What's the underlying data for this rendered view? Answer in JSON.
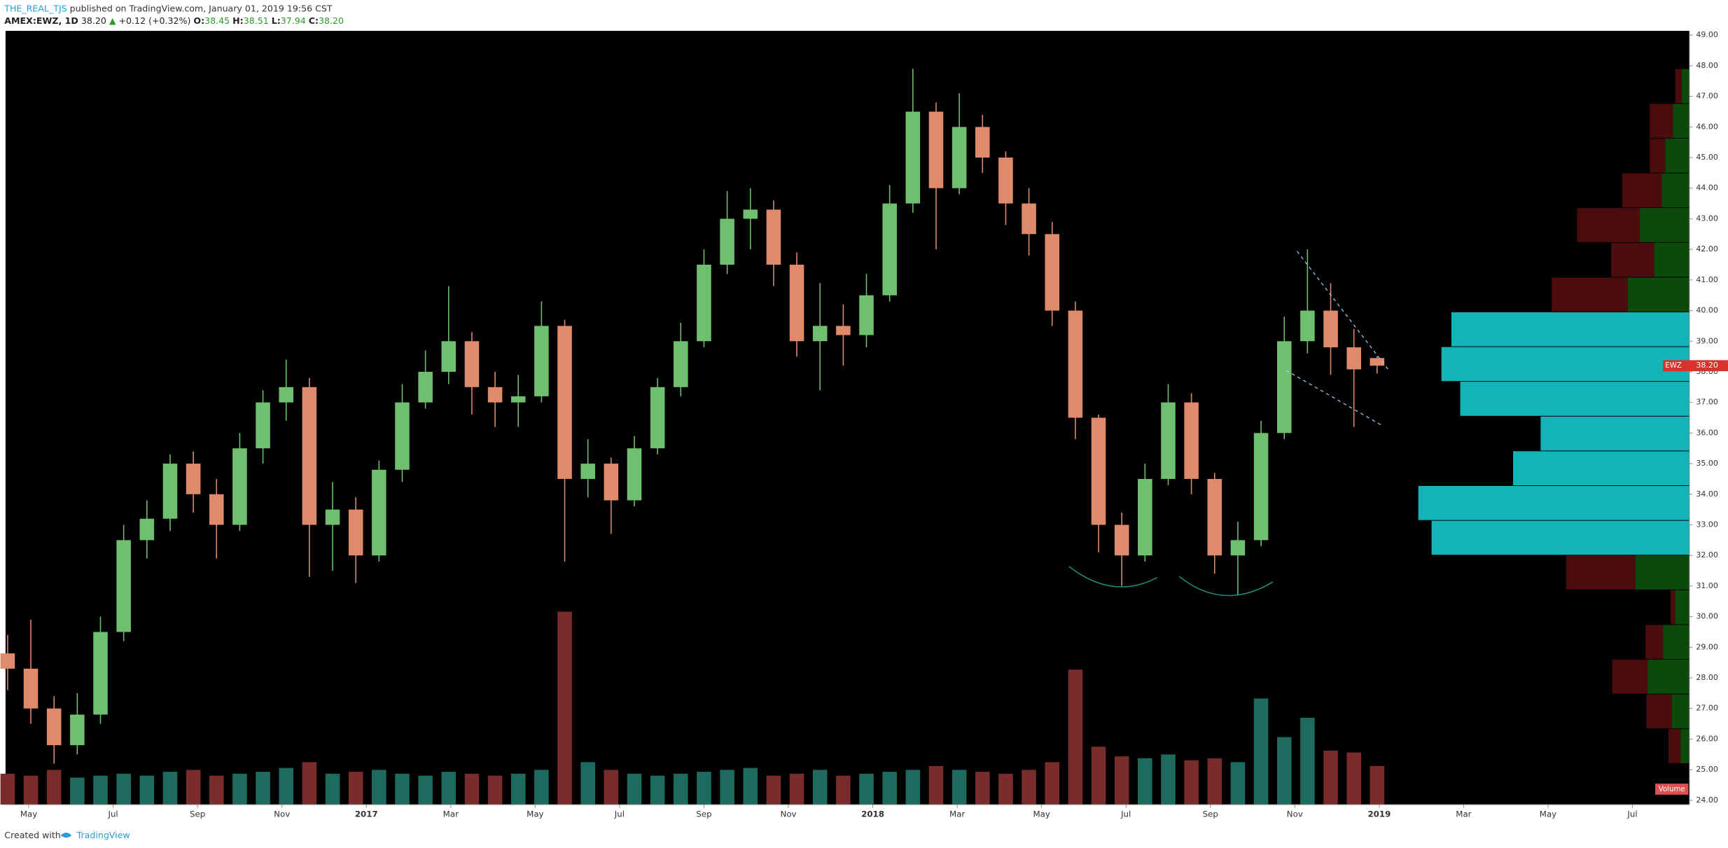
{
  "chart_data": {
    "type": "candlestick",
    "header": {
      "author": "THE_REAL_TJS",
      "published": "published on TradingView.com, January 01, 2019 19:56 CST",
      "symbol": "AMEX:EWZ, 1D",
      "last": "38.20",
      "arrow": "▲",
      "change": "+0.12 (+0.32%)",
      "o_label": "O:",
      "o": "38.45",
      "h_label": "H:",
      "h": "38.51",
      "l_label": "L:",
      "l": "37.94",
      "c_label": "C:",
      "c": "38.20"
    },
    "footer": {
      "created": "Created with",
      "brand": "TradingView"
    },
    "volume_label": "Volume",
    "last_price": {
      "symbol": "EWZ",
      "value": 38.2,
      "label": "38.20"
    },
    "colors": {
      "up": "#6fbf6f",
      "down": "#e08a6c",
      "vol_up": "#1d6b5e",
      "vol_down": "#7a2b2b",
      "profile_up": "#0b4a0b",
      "profile_down": "#4a0c0c",
      "value_area": "#12b4b8"
    },
    "x": [
      3.5,
      4.05,
      4.6,
      5.15,
      5.7,
      6.25,
      6.8,
      7.35,
      7.9,
      8.45,
      9.0,
      9.55,
      10.1,
      10.65,
      11.2,
      11.75,
      12.3,
      12.85,
      13.4,
      13.95,
      14.5,
      15.05,
      15.6,
      16.15,
      16.7,
      17.25,
      17.8,
      18.35,
      18.9,
      19.45,
      20.0,
      20.55,
      21.1,
      21.65,
      22.2,
      22.75,
      23.3,
      23.85,
      24.4,
      24.95,
      25.5,
      26.05,
      26.6,
      27.15,
      27.7,
      28.25,
      28.8,
      29.35,
      29.9,
      30.45,
      31.0,
      31.55,
      32.1,
      32.65,
      33.2,
      33.75,
      34.3,
      34.85,
      35.4,
      35.95
    ],
    "open": [
      28.8,
      28.3,
      27.0,
      25.8,
      26.8,
      29.5,
      32.5,
      33.2,
      35.0,
      34.0,
      33.0,
      35.5,
      37.0,
      37.5,
      33.0,
      33.5,
      32.0,
      34.8,
      37.0,
      38.0,
      39.0,
      37.5,
      37.0,
      37.2,
      39.5,
      34.5,
      35.0,
      33.8,
      35.5,
      37.5,
      39.0,
      41.5,
      43.0,
      43.3,
      41.5,
      39.0,
      39.5,
      39.2,
      40.5,
      43.5,
      46.5,
      44.0,
      46.0,
      45.0,
      43.5,
      42.5,
      40.0,
      36.5,
      33.0,
      32.0,
      34.5,
      37.0,
      34.5,
      32.0,
      32.5,
      36.0,
      39.0,
      40.0,
      38.8,
      38.45
    ],
    "high": [
      29.4,
      29.9,
      27.4,
      27.5,
      30.0,
      33.0,
      33.8,
      35.3,
      35.4,
      34.5,
      36.0,
      37.4,
      38.4,
      37.8,
      34.4,
      33.9,
      35.1,
      37.6,
      38.7,
      40.8,
      39.3,
      38.0,
      37.9,
      40.3,
      39.7,
      35.8,
      35.2,
      35.9,
      37.8,
      39.6,
      42.0,
      43.9,
      44.0,
      43.6,
      41.9,
      40.9,
      40.2,
      41.2,
      44.1,
      47.9,
      46.8,
      47.1,
      46.4,
      45.2,
      44.0,
      42.9,
      40.3,
      36.6,
      33.4,
      35.0,
      37.6,
      37.3,
      34.7,
      33.1,
      36.4,
      39.8,
      42.0,
      40.9,
      39.4,
      38.51
    ],
    "low": [
      27.6,
      26.5,
      25.2,
      25.5,
      26.5,
      29.2,
      31.9,
      32.8,
      33.4,
      31.9,
      32.8,
      35.0,
      36.4,
      31.3,
      31.5,
      31.1,
      31.8,
      34.4,
      36.8,
      37.6,
      36.6,
      36.2,
      36.2,
      37.0,
      31.8,
      33.9,
      32.7,
      33.6,
      35.3,
      37.2,
      38.8,
      41.2,
      42.0,
      40.8,
      38.5,
      37.4,
      38.2,
      38.8,
      40.3,
      43.2,
      42.0,
      43.8,
      44.5,
      42.8,
      41.8,
      39.5,
      35.8,
      32.1,
      31.0,
      31.8,
      34.3,
      34.0,
      31.4,
      30.7,
      32.3,
      35.8,
      38.6,
      37.9,
      36.2,
      37.94
    ],
    "close": [
      28.3,
      27.0,
      25.8,
      26.8,
      29.5,
      32.5,
      33.2,
      35.0,
      34.0,
      33.0,
      35.5,
      37.0,
      37.5,
      33.0,
      33.5,
      32.0,
      34.8,
      37.0,
      38.0,
      39.0,
      37.5,
      37.0,
      37.2,
      39.5,
      34.5,
      35.0,
      33.8,
      35.5,
      37.5,
      39.0,
      41.5,
      43.0,
      43.3,
      41.5,
      39.0,
      39.5,
      39.2,
      40.5,
      43.5,
      46.5,
      44.0,
      46.0,
      45.0,
      43.5,
      42.5,
      40.0,
      36.5,
      33.0,
      32.0,
      34.5,
      37.0,
      34.5,
      32.0,
      32.5,
      36.0,
      39.0,
      40.0,
      38.8,
      38.08,
      38.2
    ],
    "volume": [
      16,
      15,
      18,
      14,
      15,
      16,
      15,
      17,
      18,
      15,
      16,
      17,
      19,
      22,
      16,
      17,
      18,
      16,
      15,
      17,
      16,
      15,
      16,
      18,
      100,
      22,
      18,
      16,
      15,
      16,
      17,
      18,
      19,
      15,
      16,
      18,
      15,
      16,
      17,
      18,
      20,
      18,
      17,
      16,
      18,
      22,
      70,
      30,
      25,
      24,
      26,
      23,
      24,
      22,
      55,
      35,
      45,
      28,
      27,
      20
    ],
    "vlim": [
      0,
      100
    ],
    "profile": {
      "start": 25.19,
      "step": 1.135,
      "rows": [
        {
          "up": 8,
          "down": 11
        },
        {
          "up": 16,
          "down": 23
        },
        {
          "up": 38,
          "down": 32
        },
        {
          "up": 24,
          "down": 16
        },
        {
          "up": 13,
          "down": 4
        },
        {
          "up": 49,
          "down": 63
        },
        {
          "total": 234
        },
        {
          "total": 246
        },
        {
          "total": 160
        },
        {
          "total": 135
        },
        {
          "total": 208
        },
        {
          "total": 225
        },
        {
          "total": 216
        },
        {
          "up": 56,
          "down": 69
        },
        {
          "up": 32,
          "down": 39
        },
        {
          "up": 45,
          "down": 57
        },
        {
          "up": 25,
          "down": 36
        },
        {
          "up": 22,
          "down": 14
        },
        {
          "up": 15,
          "down": 21
        },
        {
          "up": 7,
          "down": 6
        }
      ]
    },
    "xlim": [
      3.45,
      43.35
    ],
    "xticks": [
      {
        "value": 4,
        "label": "May"
      },
      {
        "value": 6,
        "label": "Jul"
      },
      {
        "value": 8,
        "label": "Sep"
      },
      {
        "value": 10,
        "label": "Nov"
      },
      {
        "value": 12,
        "label": "2017"
      },
      {
        "value": 14,
        "label": "Mar"
      },
      {
        "value": 16,
        "label": "May"
      },
      {
        "value": 18,
        "label": "Jul"
      },
      {
        "value": 20,
        "label": "Sep"
      },
      {
        "value": 22,
        "label": "Nov"
      },
      {
        "value": 24,
        "label": "2018"
      },
      {
        "value": 26,
        "label": "Mar"
      },
      {
        "value": 28,
        "label": "May"
      },
      {
        "value": 30,
        "label": "Jul"
      },
      {
        "value": 32,
        "label": "Sep"
      },
      {
        "value": 34,
        "label": "Nov"
      },
      {
        "value": 36,
        "label": "2019"
      },
      {
        "value": 38,
        "label": "Mar"
      },
      {
        "value": 40,
        "label": "May"
      },
      {
        "value": 42,
        "label": "Jul"
      }
    ],
    "ylim": [
      23.86,
      49.14
    ],
    "yticks": [
      {
        "value": 24,
        "label": "24.00"
      },
      {
        "value": 25,
        "label": "25.00"
      },
      {
        "value": 26,
        "label": "26.00"
      },
      {
        "value": 27,
        "label": "27.00"
      },
      {
        "value": 28,
        "label": "28.00"
      },
      {
        "value": 29,
        "label": "29.00"
      },
      {
        "value": 30,
        "label": "30.00"
      },
      {
        "value": 31,
        "label": "31.00"
      },
      {
        "value": 32,
        "label": "32.00"
      },
      {
        "value": 33,
        "label": "33.00"
      },
      {
        "value": 34,
        "label": "34.00"
      },
      {
        "value": 35,
        "label": "35.00"
      },
      {
        "value": 36,
        "label": "36.00"
      },
      {
        "value": 37,
        "label": "37.00"
      },
      {
        "value": 38,
        "label": "38.00"
      },
      {
        "value": 39,
        "label": "39.00"
      },
      {
        "value": 40,
        "label": "40.00"
      },
      {
        "value": 41,
        "label": "41.00"
      },
      {
        "value": 42,
        "label": "42.00"
      },
      {
        "value": 43,
        "label": "43.00"
      },
      {
        "value": 44,
        "label": "44.00"
      },
      {
        "value": 45,
        "label": "45.00"
      },
      {
        "value": 46,
        "label": "46.00"
      },
      {
        "value": 47,
        "label": "47.00"
      },
      {
        "value": 48,
        "label": "48.00"
      },
      {
        "value": 49,
        "label": "49.00"
      }
    ]
  }
}
